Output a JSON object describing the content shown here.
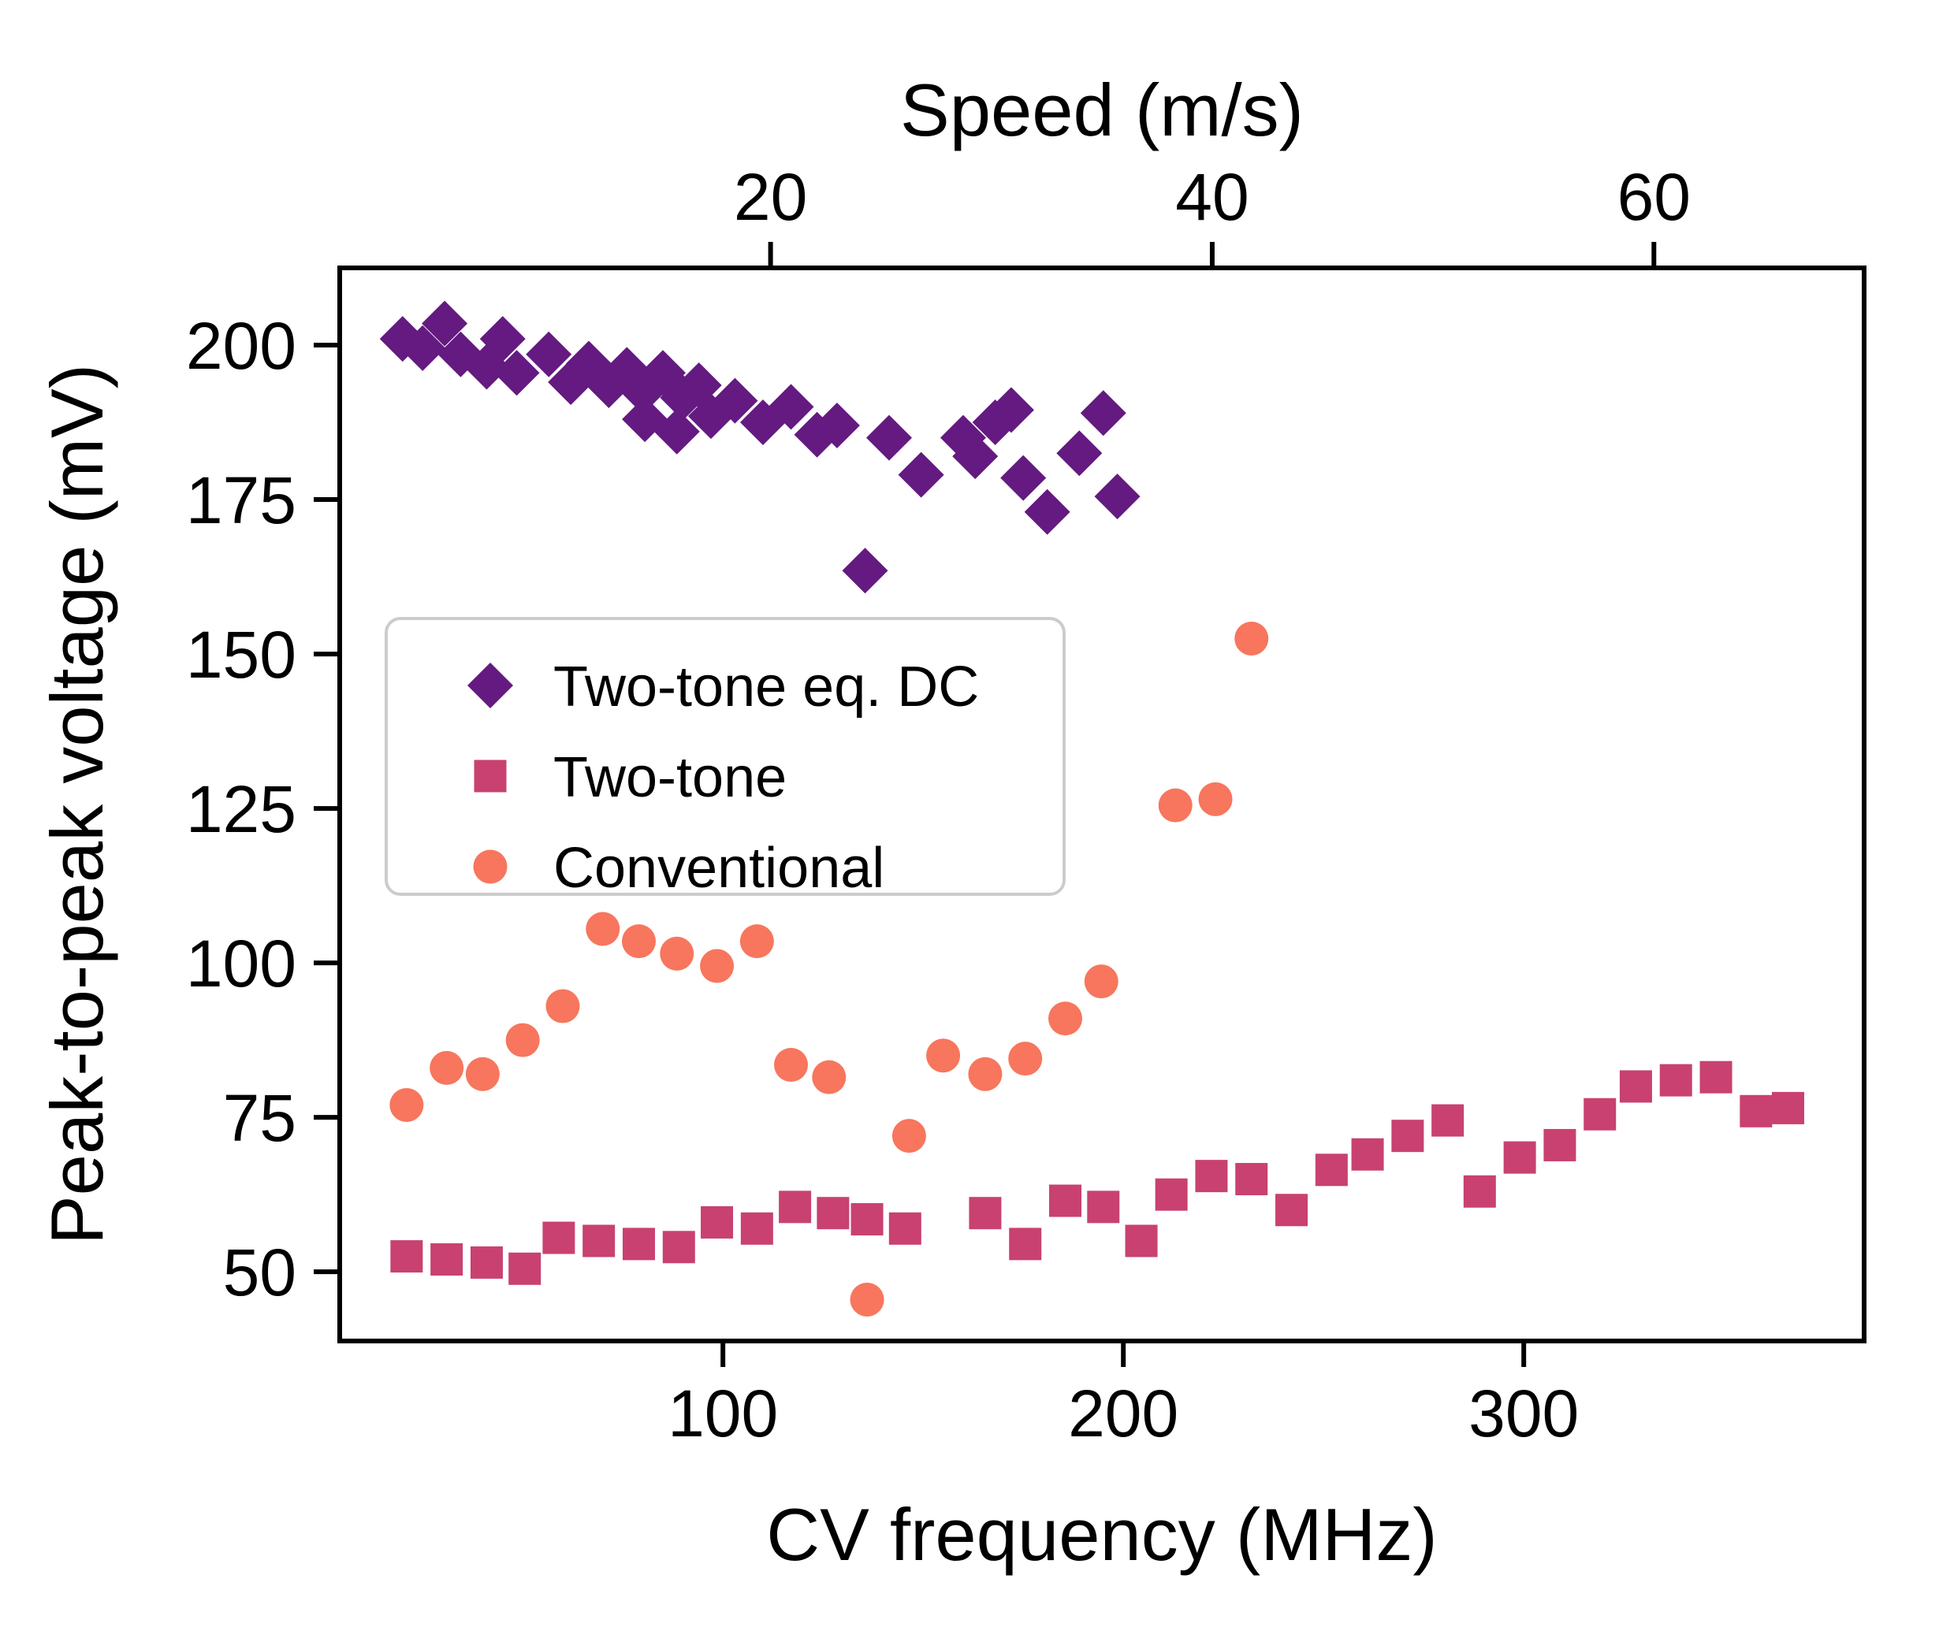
{
  "chart_data": {
    "type": "scatter",
    "title": "",
    "xlabel": "CV frequency (MHz)",
    "x2label": "Speed (m/s)",
    "ylabel": "Peak-to-peak voltage (mV)",
    "xlim": [
      4.3,
      385.0
    ],
    "ylim": [
      38.8,
      212.5
    ],
    "grid": false,
    "legend_position": "center-left-inside",
    "x_axis": {
      "label": "CV frequency (MHz)",
      "ticks": [
        100,
        200,
        300
      ]
    },
    "x_top_axis": {
      "label": "Speed (m/s)",
      "ticks": [
        20,
        40,
        60
      ],
      "tick_positions_in_freq": [
        111.9,
        222.2,
        332.5
      ]
    },
    "y_axis": {
      "label": "Peak-to-peak voltage (mV)",
      "ticks": [
        50,
        75,
        100,
        125,
        150,
        175,
        200
      ]
    },
    "series": [
      {
        "name": "Two-tone eq. DC",
        "marker": "diamond",
        "color": "#641a80",
        "points": [
          [
            20,
            201
          ],
          [
            25,
            199.5
          ],
          [
            30.5,
            203.5
          ],
          [
            34.5,
            198.5
          ],
          [
            41,
            196.5
          ],
          [
            45,
            201
          ],
          [
            48.5,
            195.5
          ],
          [
            56.5,
            198.5
          ],
          [
            62,
            194
          ],
          [
            66.5,
            197
          ],
          [
            71.5,
            193.5
          ],
          [
            76,
            196
          ],
          [
            80,
            192.5
          ],
          [
            85,
            195.5
          ],
          [
            80.5,
            188
          ],
          [
            88.5,
            186
          ],
          [
            90,
            191.5
          ],
          [
            94,
            193.5
          ],
          [
            97,
            188.5
          ],
          [
            103,
            191
          ],
          [
            110,
            187.5
          ],
          [
            117,
            190
          ],
          [
            123.5,
            185.5
          ],
          [
            128.5,
            187
          ],
          [
            135.5,
            163.5
          ],
          [
            141.5,
            185
          ],
          [
            149.5,
            179
          ],
          [
            160,
            185
          ],
          [
            163,
            182
          ],
          [
            168,
            187.5
          ],
          [
            172,
            189.5
          ],
          [
            175,
            178.5
          ],
          [
            181,
            173
          ],
          [
            189,
            182.5
          ],
          [
            195,
            189
          ],
          [
            198.5,
            175.5
          ]
        ]
      },
      {
        "name": "Two-tone",
        "marker": "square",
        "color": "#c84171",
        "points": [
          [
            21,
            52.5
          ],
          [
            31,
            52
          ],
          [
            41,
            51.5
          ],
          [
            50.5,
            50.5
          ],
          [
            59,
            55.5
          ],
          [
            69,
            55
          ],
          [
            79,
            54.5
          ],
          [
            89,
            54
          ],
          [
            98.5,
            58
          ],
          [
            108.5,
            57
          ],
          [
            118,
            60.5
          ],
          [
            127.5,
            59.5
          ],
          [
            136,
            58.5
          ],
          [
            145.5,
            57
          ],
          [
            165.5,
            59.5
          ],
          [
            175.5,
            54.5
          ],
          [
            185.5,
            61.5
          ],
          [
            195,
            60.5
          ],
          [
            204.5,
            55
          ],
          [
            212,
            62.5
          ],
          [
            222,
            65.5
          ],
          [
            232,
            65
          ],
          [
            242,
            60
          ],
          [
            252,
            66.5
          ],
          [
            261,
            69
          ],
          [
            271,
            72
          ],
          [
            281,
            74.5
          ],
          [
            289,
            63
          ],
          [
            299,
            68.5
          ],
          [
            309,
            70.5
          ],
          [
            319,
            75.5
          ],
          [
            328,
            80
          ],
          [
            338,
            81
          ],
          [
            348,
            81.5
          ],
          [
            358,
            76
          ],
          [
            366,
            76.5
          ]
        ]
      },
      {
        "name": "Conventional",
        "marker": "circle",
        "color": "#f7765d",
        "points": [
          [
            21,
            77
          ],
          [
            31,
            83
          ],
          [
            40,
            82
          ],
          [
            50,
            87.5
          ],
          [
            60,
            93
          ],
          [
            70,
            105.5
          ],
          [
            79,
            103.5
          ],
          [
            88.5,
            101.5
          ],
          [
            98.5,
            99.5
          ],
          [
            108.5,
            103.5
          ],
          [
            117,
            83.5
          ],
          [
            126.5,
            81.5
          ],
          [
            136,
            45.5
          ],
          [
            146.5,
            72
          ],
          [
            155,
            85
          ],
          [
            165.5,
            82
          ],
          [
            175.5,
            84.5
          ],
          [
            185.5,
            91
          ],
          [
            194.5,
            97
          ],
          [
            213,
            125.5
          ],
          [
            223,
            126.5
          ],
          [
            232,
            152.5
          ]
        ]
      }
    ],
    "legend": {
      "items": [
        "Two-tone eq. DC",
        "Two-tone",
        "Conventional"
      ],
      "border_color": "#cccccc",
      "background": "rgba(255,255,255,0.85)"
    },
    "axis_color": "#000000"
  }
}
